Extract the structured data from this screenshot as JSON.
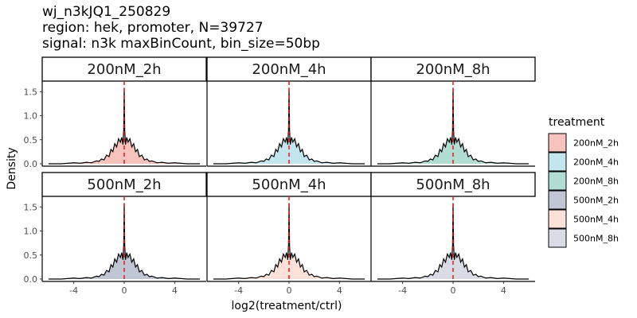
{
  "chart_data": {
    "type": "area",
    "title_lines": [
      "wj_n3kJQ1_250829",
      "region: hek, promoter, N=39727",
      "signal: n3k maxBinCount, bin_size=50bp"
    ],
    "xlabel": "log2(treatment/ctrl)",
    "ylabel": "Density",
    "xlim": [
      -6.5,
      6.5
    ],
    "ylim": [
      -0.05,
      1.72
    ],
    "x_ticks": [
      -4,
      0,
      4
    ],
    "x_tick_labels": [
      "-4",
      "0",
      "4"
    ],
    "y_ticks": [
      0.0,
      0.5,
      1.0,
      1.5
    ],
    "y_tick_labels": [
      "0.0",
      "0.5",
      "1.0",
      "1.5"
    ],
    "grid": false,
    "reference_line_x": 0,
    "legend": {
      "title": "treatment",
      "position": "right"
    },
    "density_curve": {
      "x": [
        -6.0,
        -5.0,
        -4.5,
        -4.0,
        -3.5,
        -3.0,
        -2.6,
        -2.2,
        -2.0,
        -1.8,
        -1.6,
        -1.4,
        -1.2,
        -1.05,
        -0.9,
        -0.75,
        -0.6,
        -0.45,
        -0.3,
        -0.2,
        -0.1,
        -0.04,
        0.0,
        0.04,
        0.1,
        0.2,
        0.3,
        0.45,
        0.6,
        0.75,
        0.9,
        1.05,
        1.2,
        1.4,
        1.6,
        1.8,
        2.0,
        2.2,
        2.6,
        3.0,
        3.5,
        4.0,
        4.5,
        5.0,
        6.0
      ],
      "y": [
        0.0,
        0.0,
        0.01,
        0.02,
        0.01,
        0.03,
        0.02,
        0.06,
        0.05,
        0.1,
        0.08,
        0.18,
        0.15,
        0.3,
        0.25,
        0.42,
        0.35,
        0.52,
        0.45,
        0.55,
        0.4,
        0.7,
        1.58,
        0.7,
        0.4,
        0.55,
        0.45,
        0.52,
        0.35,
        0.42,
        0.25,
        0.3,
        0.15,
        0.18,
        0.08,
        0.1,
        0.05,
        0.06,
        0.02,
        0.03,
        0.01,
        0.02,
        0.01,
        0.0,
        0.0
      ]
    },
    "panels": [
      {
        "label": "200nM_2h",
        "color": "#F8C3BD"
      },
      {
        "label": "200nM_4h",
        "color": "#C2E5EE"
      },
      {
        "label": "200nM_8h",
        "color": "#B1DDD2"
      },
      {
        "label": "500nM_2h",
        "color": "#C0C6D4"
      },
      {
        "label": "500nM_4h",
        "color": "#FCE1D9"
      },
      {
        "label": "500nM_8h",
        "color": "#D9DCE5"
      }
    ],
    "reference_line_color": "#E41A1C"
  }
}
